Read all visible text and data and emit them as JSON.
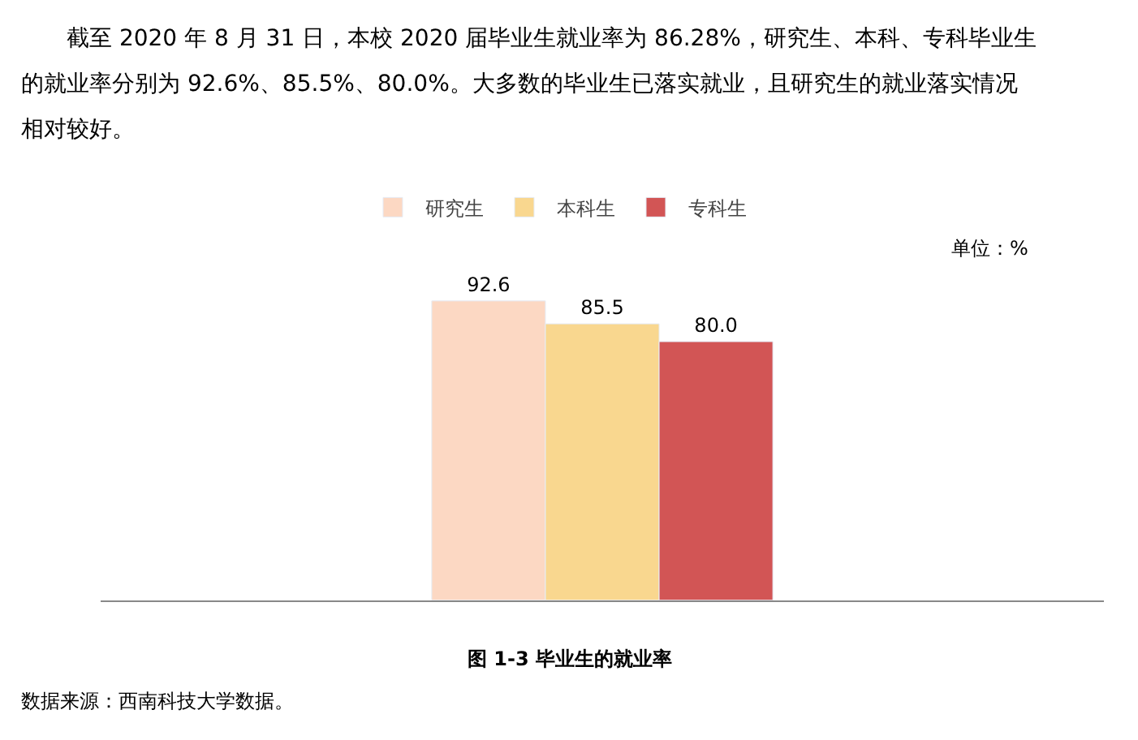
{
  "chart_data": {
    "type": "bar",
    "title": "图 1-3 毕业生的就业率",
    "categories": [
      null
    ],
    "series": [
      {
        "name": "研究生",
        "color": "#fcd8c3",
        "values": [
          92.6
        ],
        "value_labels": [
          "92.6"
        ]
      },
      {
        "name": "本科生",
        "color": "#f9d78f",
        "values": [
          85.5
        ],
        "value_labels": [
          "85.5"
        ]
      },
      {
        "name": "专科生",
        "color": "#d25555",
        "values": [
          80.0
        ],
        "value_labels": [
          "80.0"
        ]
      }
    ],
    "legend": "top",
    "annotations": [
      "截至 2020 年 8 月 31 日，本校 2020 届毕业生就业率为 86.28%，研究生、本科、专科毕业生",
      "的就业率分别为 92.6%、85.5%、80.0%。大多数的毕业生已落实就业，且研究生的就业落实情况",
      "相对较好。",
      "单位：%",
      "数据来源：西南科技大学数据。"
    ]
  }
}
